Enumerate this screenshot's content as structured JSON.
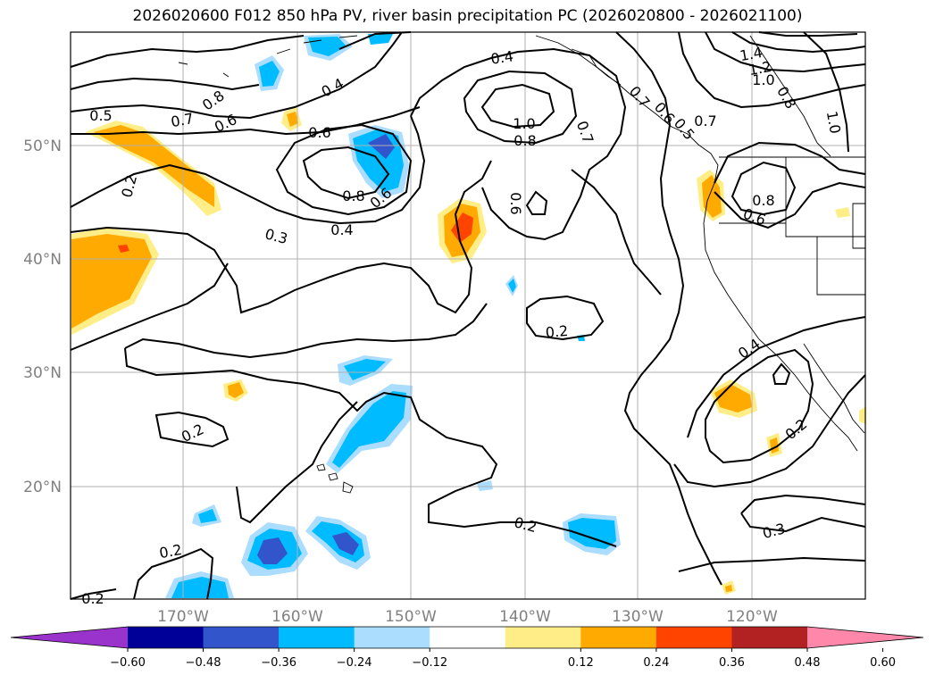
{
  "title": "2026020600 F012 850 hPa PV, river basin precipitation PC (2026020800 - 2026021100)",
  "lat_labels": [
    "50°N",
    "40°N",
    "30°N",
    "20°N"
  ],
  "lon_labels": [
    "170°W",
    "160°W",
    "150°W",
    "140°W",
    "130°W",
    "120°W"
  ],
  "colorbar": {
    "colors": [
      "#9933cc",
      "#000099",
      "#3355cc",
      "#00bbff",
      "#aaddff",
      "#ffffff",
      "#ffee88",
      "#ffaa00",
      "#ff4400",
      "#b22222",
      "#ff88aa"
    ],
    "ticks": [
      "−0.60",
      "−0.48",
      "−0.36",
      "−0.24",
      "−0.12",
      "0.12",
      "0.24",
      "0.36",
      "0.48",
      "0.60"
    ]
  },
  "contour_labels": [
    "0.5",
    "0.7",
    "0.8",
    "0.6",
    "0.4",
    "0.2",
    "1.0",
    "0.6",
    "0.8",
    "0.6",
    "0.7",
    "0.8",
    "0.4",
    "0.3",
    "0.4",
    "0.7",
    "0.6",
    "0.2",
    "0.2",
    "0.2",
    "0.2",
    "0.2",
    "0.3",
    "0.4",
    "0.2",
    "0.8",
    "0.6",
    "1.4",
    "1.2",
    "1.0",
    "0.8",
    "1.0",
    "0.7",
    "0.6",
    "0.5"
  ]
}
